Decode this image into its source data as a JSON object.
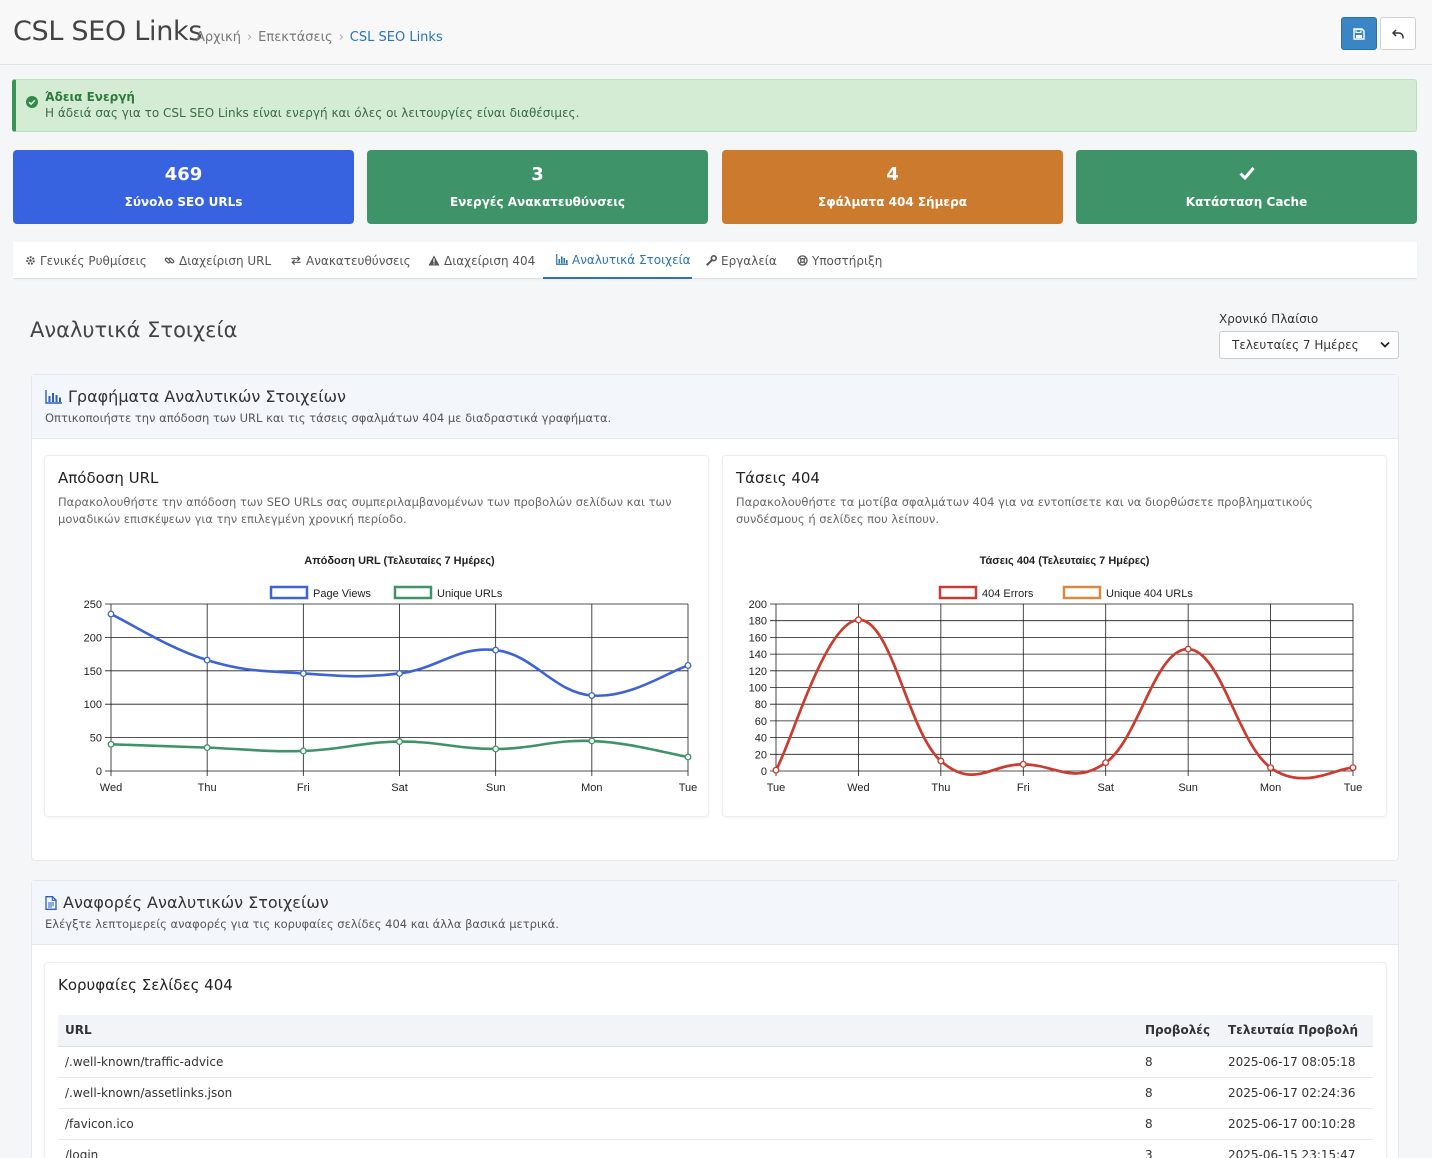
{
  "header": {
    "title": "CSL SEO Links",
    "breadcrumb": [
      "Αρχική",
      "Επεκτάσεις",
      "CSL SEO Links"
    ],
    "save_icon": "save-icon",
    "back_icon": "undo-icon"
  },
  "alert": {
    "title": "Άδεια Ενεργή",
    "text": "Η άδειά σας για το CSL SEO Links είναι ενεργή και όλες οι λειτουργίες είναι διαθέσιμες."
  },
  "stats": [
    {
      "value": "469",
      "label": "Σύνολο SEO URLs",
      "color": "#3763e0"
    },
    {
      "value": "3",
      "label": "Ενεργές Ανακατευθύνσεις",
      "color": "#3e9468"
    },
    {
      "value": "4",
      "label": "Σφάλματα 404 Σήμερα",
      "color": "#cc7a2e"
    },
    {
      "value": "",
      "label": "Κατάσταση Cache",
      "color": "#3e9468",
      "icon": "check-icon"
    }
  ],
  "tabs": [
    {
      "label": "Γενικές Ρυθμίσεις",
      "icon": "gear-icon"
    },
    {
      "label": "Διαχείριση URL",
      "icon": "link-icon"
    },
    {
      "label": "Ανακατευθύνσεις",
      "icon": "exchange-icon"
    },
    {
      "label": "Διαχείριση 404",
      "icon": "warning-icon"
    },
    {
      "label": "Αναλυτικά Στοιχεία",
      "icon": "bar-chart-icon",
      "active": true
    },
    {
      "label": "Εργαλεία",
      "icon": "wrench-icon"
    },
    {
      "label": "Υποστήριξη",
      "icon": "support-icon"
    }
  ],
  "content": {
    "title": "Αναλυτικά Στοιχεία",
    "range_label": "Χρονικό Πλαίσιο",
    "range_value": "Τελευταίες 7 Ημέρες"
  },
  "charts_panel": {
    "title": "Γραφήματα Αναλυτικών Στοιχείων",
    "subtitle": "Οπτικοποιήστε την απόδοση των URL και τις τάσεις σφαλμάτων 404 με διαδραστικά γραφήματα."
  },
  "url_card": {
    "title": "Απόδοση URL",
    "desc": "Παρακολουθήστε την απόδοση των SEO URLs σας συμπεριλαμβανομένων των προβολών σελίδων και των μοναδικών επισκέψεων για την επιλεγμένη χρονική περίοδο."
  },
  "trend_card": {
    "title": "Τάσεις 404",
    "desc": "Παρακολουθήστε τα μοτίβα σφαλμάτων 404 για να εντοπίσετε και να διορθώσετε προβληματικούς συνδέσμους ή σελίδες που λείπουν."
  },
  "chart_data": [
    {
      "type": "line",
      "title": "Απόδοση URL (Τελευταίες 7 Ημέρες)",
      "categories": [
        "Wed",
        "Thu",
        "Fri",
        "Sat",
        "Sun",
        "Mon",
        "Tue"
      ],
      "ylim": [
        0,
        250
      ],
      "yticks": [
        0,
        50,
        100,
        150,
        200,
        250
      ],
      "grid": true,
      "legend": "top",
      "series": [
        {
          "name": "Page Views",
          "color": "#3d63d6",
          "values": [
            235,
            166,
            146,
            146,
            181,
            113,
            158
          ]
        },
        {
          "name": "Unique URLs",
          "color": "#3e9468",
          "values": [
            40,
            35,
            30,
            44,
            33,
            45,
            21
          ]
        }
      ]
    },
    {
      "type": "line",
      "title": "Τάσεις 404 (Τελευταίες 7 Ημέρες)",
      "categories": [
        "Tue",
        "Wed",
        "Thu",
        "Fri",
        "Sat",
        "Sun",
        "Mon",
        "Tue"
      ],
      "ylim": [
        0,
        200
      ],
      "yticks": [
        0,
        20,
        40,
        60,
        80,
        100,
        120,
        140,
        160,
        180,
        200
      ],
      "grid": true,
      "legend": "top",
      "series": [
        {
          "name": "404 Errors",
          "color": "#cc3b33",
          "values": [
            1,
            181,
            12,
            8,
            10,
            146,
            4,
            4
          ]
        },
        {
          "name": "Unique 404 URLs",
          "color": "#d8893a",
          "values": [
            1,
            181,
            12,
            8,
            10,
            146,
            4,
            4
          ]
        }
      ]
    }
  ],
  "reports_panel": {
    "title": "Αναφορές Αναλυτικών Στοιχείων",
    "subtitle": "Ελέγξτε λεπτομερείς αναφορές για τις κορυφαίες σελίδες 404 και άλλα βασικά μετρικά."
  },
  "top404": {
    "title": "Κορυφαίες Σελίδες 404",
    "columns": [
      "URL",
      "Προβολές",
      "Τελευταία Προβολή"
    ],
    "rows": [
      [
        "/.well-known/traffic-advice",
        "8",
        "2025-06-17 08:05:18"
      ],
      [
        "/.well-known/assetlinks.json",
        "8",
        "2025-06-17 02:24:36"
      ],
      [
        "/favicon.ico",
        "8",
        "2025-06-17 00:10:28"
      ],
      [
        "/login",
        "3",
        "2025-06-15 23:15:47"
      ]
    ]
  }
}
